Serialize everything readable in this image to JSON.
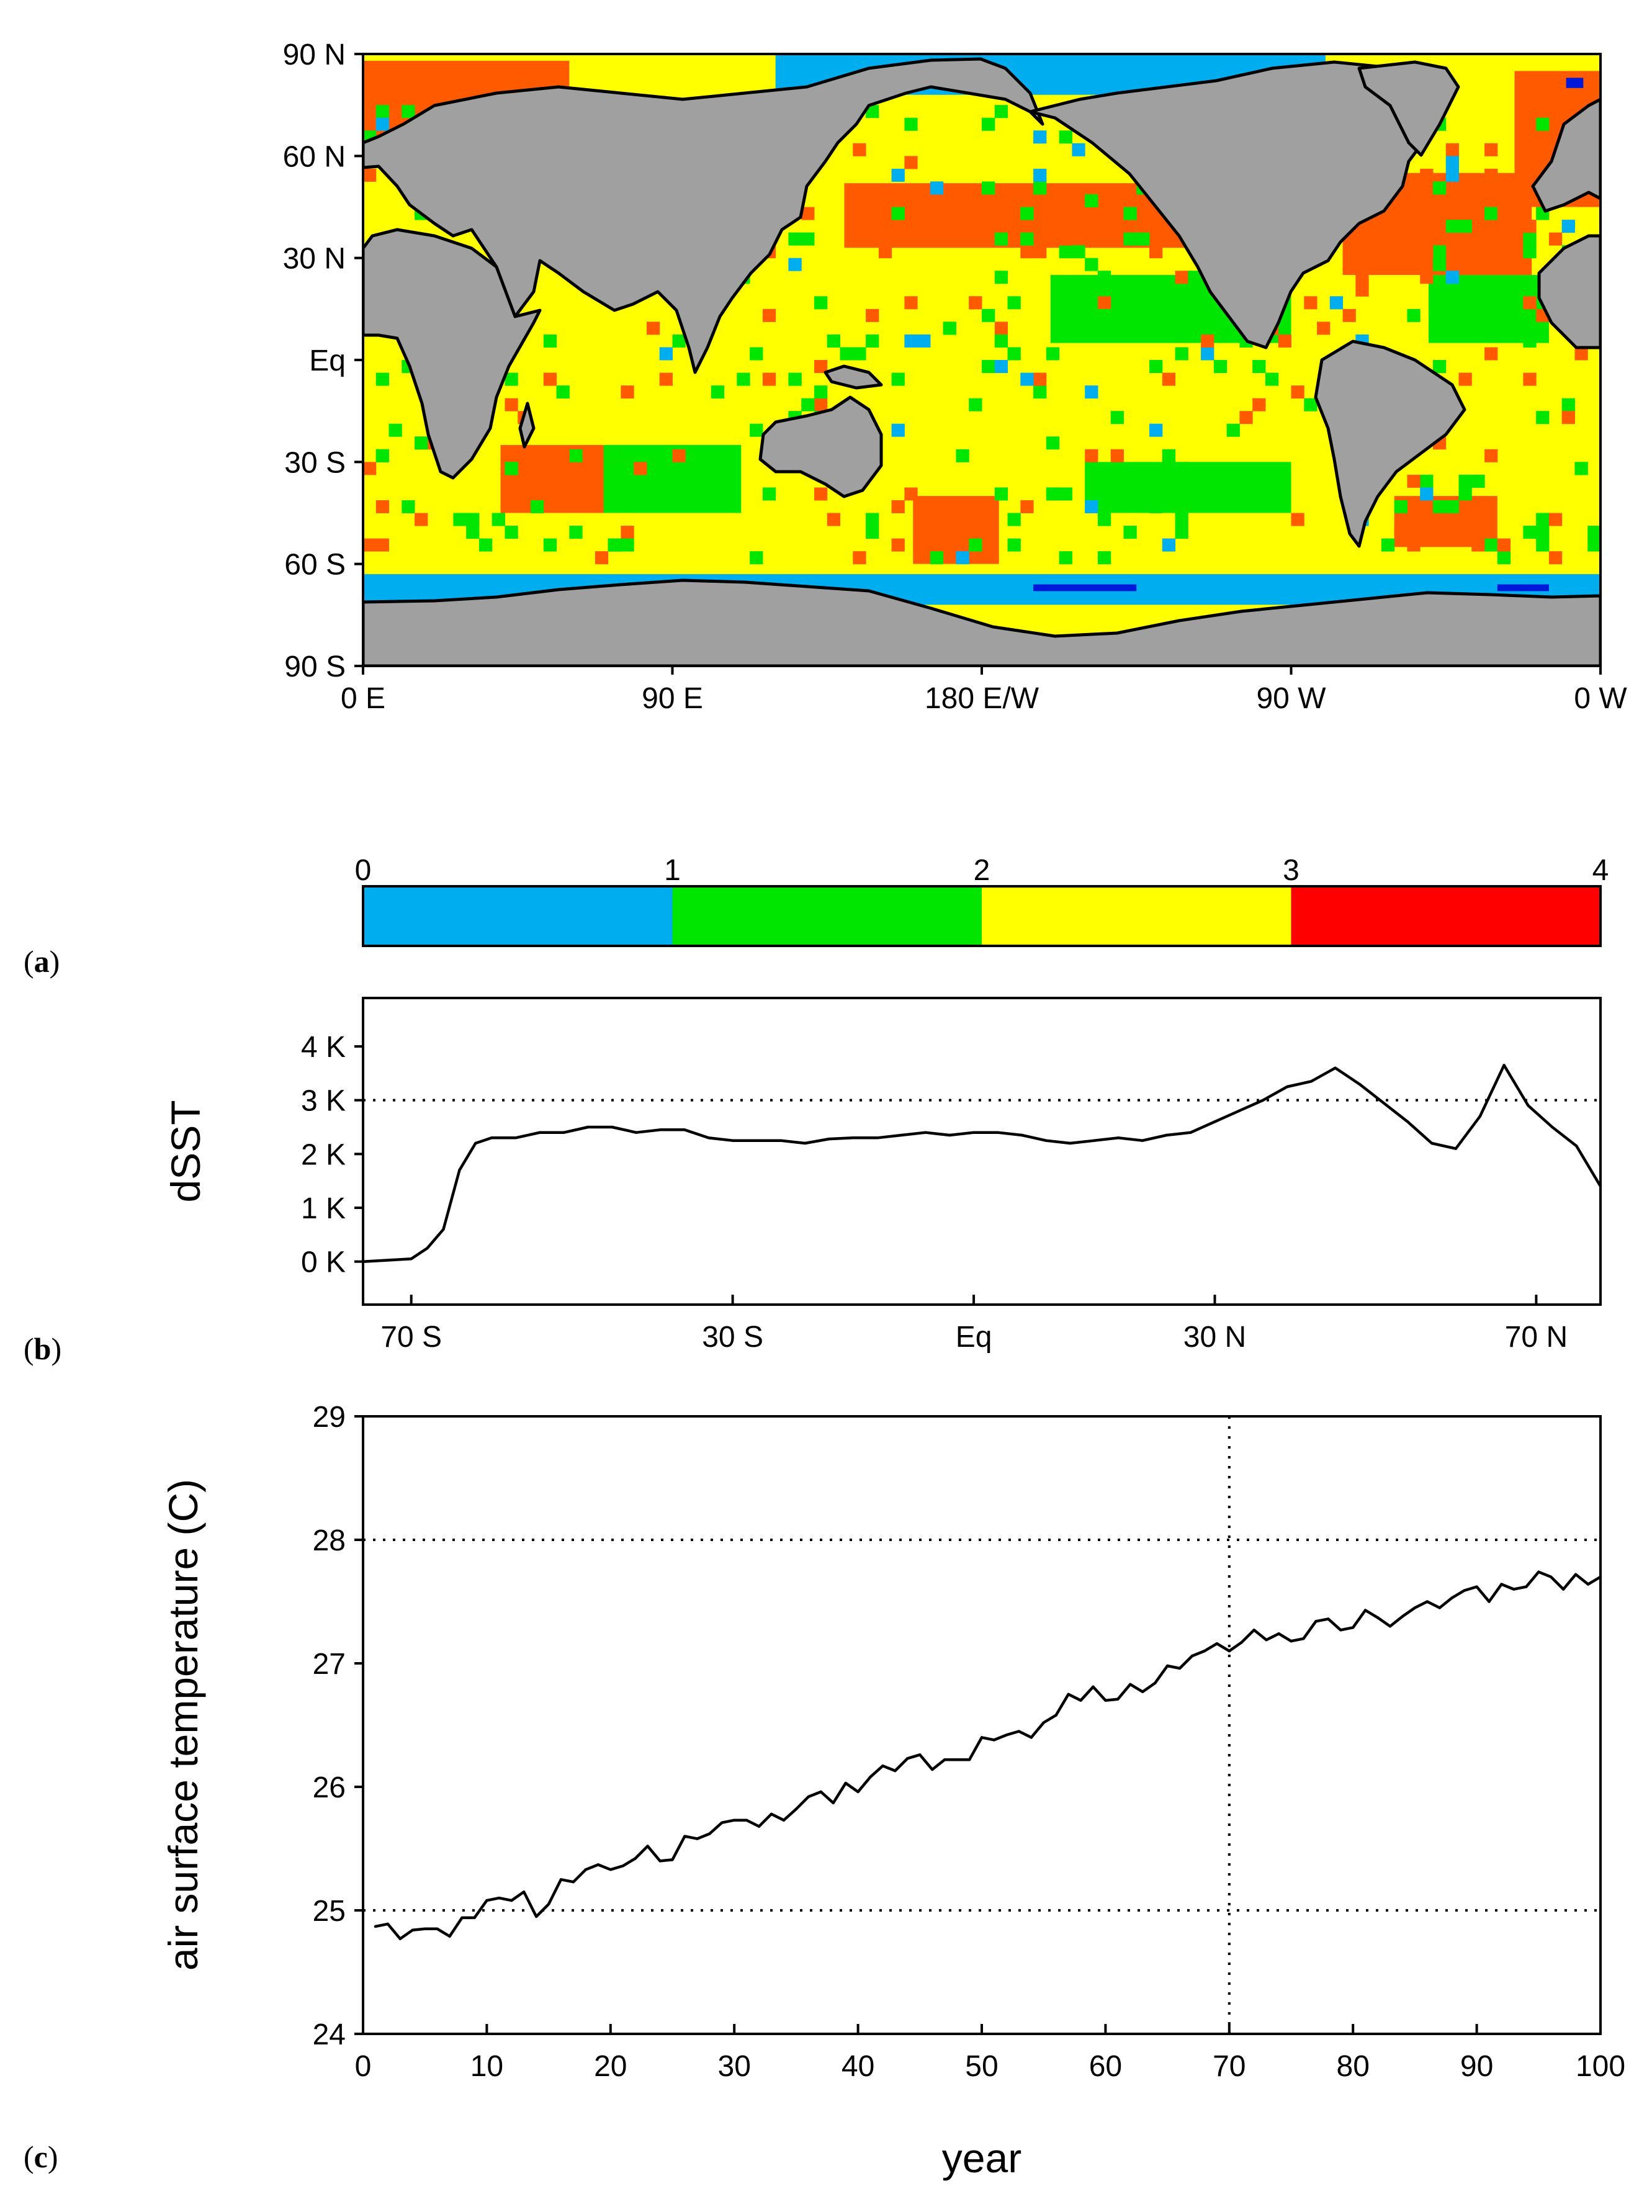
{
  "panels": {
    "a": {
      "label_prefix": "(",
      "letter": "a",
      "label_suffix": ")"
    },
    "b": {
      "label_prefix": "(",
      "letter": "b",
      "label_suffix": ")"
    },
    "c": {
      "label_prefix": "(",
      "letter": "c",
      "label_suffix": ")"
    }
  },
  "colors": {
    "land": "#a0a0a0",
    "bin_0_1": "#00aeef",
    "bin_1_2": "#00e600",
    "bin_2_3": "#ffff00",
    "bin_3_4": "#ff0000",
    "bin_3_4_map": "#ff5a00",
    "bin_deep": "#0018d8",
    "coast": "#000000"
  },
  "chart_data": [
    {
      "id": "map",
      "type": "heatmap",
      "title": "",
      "x_ticks": [
        "0 E",
        "90 E",
        "180 E/W",
        "90 W",
        "0 W"
      ],
      "x_tick_values": [
        0,
        90,
        180,
        270,
        360
      ],
      "y_ticks": [
        "90 N",
        "60 N",
        "30 N",
        "Eq",
        "30 S",
        "60 S",
        "90 S"
      ],
      "y_tick_values": [
        90,
        60,
        30,
        0,
        -30,
        -60,
        -90
      ],
      "xlim": [
        0,
        360
      ],
      "ylim": [
        -90,
        90
      ],
      "colorbar": {
        "ticks": [
          "0",
          "1",
          "2",
          "3",
          "4"
        ],
        "bins": [
          {
            "from": 0,
            "to": 1,
            "color": "#00aeef"
          },
          {
            "from": 1,
            "to": 2,
            "color": "#00e600"
          },
          {
            "from": 2,
            "to": 3,
            "color": "#ffff00"
          },
          {
            "from": 3,
            "to": 4,
            "color": "#ff0000"
          }
        ]
      },
      "regions": [
        {
          "name": "southern-ocean-band",
          "value": 0.5,
          "lon": [
            0,
            360
          ],
          "lat": [
            -72,
            -63
          ]
        },
        {
          "name": "arctic-north-pacific",
          "value": 0.5,
          "lon": [
            120,
            280
          ],
          "lat": [
            78,
            90
          ]
        },
        {
          "name": "arctic-barents",
          "value": 3.5,
          "lon": [
            0,
            60
          ],
          "lat": [
            66,
            88
          ]
        },
        {
          "name": "north-pacific-warm",
          "value": 3.5,
          "lon": [
            140,
            240
          ],
          "lat": [
            33,
            52
          ]
        },
        {
          "name": "north-atlantic-warm",
          "value": 3.5,
          "lon": [
            285,
            340
          ],
          "lat": [
            25,
            55
          ]
        },
        {
          "name": "greenland-sea-warm",
          "value": 3.5,
          "lon": [
            335,
            360
          ],
          "lat": [
            45,
            85
          ]
        },
        {
          "name": "tropical-pacific-low",
          "value": 1.5,
          "lon": [
            200,
            270
          ],
          "lat": [
            5,
            25
          ]
        },
        {
          "name": "tropical-atlantic-low",
          "value": 1.5,
          "lon": [
            310,
            345
          ],
          "lat": [
            5,
            25
          ]
        },
        {
          "name": "indian-ocean-low",
          "value": 1.5,
          "lon": [
            60,
            110
          ],
          "lat": [
            -45,
            -25
          ]
        },
        {
          "name": "south-pacific-low",
          "value": 1.5,
          "lon": [
            210,
            270
          ],
          "lat": [
            -45,
            -30
          ]
        },
        {
          "name": "south-indian-warm",
          "value": 3.5,
          "lon": [
            40,
            70
          ],
          "lat": [
            -45,
            -25
          ]
        },
        {
          "name": "tasman-warm",
          "value": 3.5,
          "lon": [
            160,
            185
          ],
          "lat": [
            -60,
            -40
          ]
        },
        {
          "name": "south-atlantic-warm",
          "value": 3.5,
          "lon": [
            300,
            330
          ],
          "lat": [
            -55,
            -40
          ]
        }
      ]
    },
    {
      "id": "zonal-dsst",
      "type": "line",
      "title": "",
      "ylabel": "dSST",
      "xlabel": "",
      "x_ticks": [
        "70 S",
        "30 S",
        "Eq",
        "30 N",
        "70 N"
      ],
      "x_tick_values": [
        -70,
        -30,
        0,
        30,
        70
      ],
      "y_ticks": [
        "0 K",
        "1 K",
        "2 K",
        "3 K",
        "4 K"
      ],
      "y_tick_values": [
        0,
        1,
        2,
        3,
        4
      ],
      "xlim": [
        -76,
        78
      ],
      "ylim": [
        -0.8,
        4.9
      ],
      "reference_lines": [
        {
          "axis": "y",
          "value": 3
        }
      ],
      "x": [
        -76,
        -70,
        -68,
        -66,
        -64,
        -62,
        -60,
        -57,
        -54,
        -51,
        -48,
        -45,
        -42,
        -39,
        -36,
        -33,
        -30,
        -27,
        -24,
        -21,
        -18,
        -15,
        -12,
        -9,
        -6,
        -3,
        0,
        3,
        6,
        9,
        12,
        15,
        18,
        21,
        24,
        27,
        30,
        33,
        36,
        39,
        42,
        45,
        48,
        51,
        54,
        57,
        60,
        63,
        66,
        69,
        72,
        75,
        78
      ],
      "values": [
        0,
        0.05,
        0.25,
        0.6,
        1.7,
        2.2,
        2.3,
        2.3,
        2.4,
        2.4,
        2.5,
        2.5,
        2.4,
        2.45,
        2.45,
        2.3,
        2.25,
        2.25,
        2.25,
        2.2,
        2.28,
        2.3,
        2.3,
        2.35,
        2.4,
        2.35,
        2.4,
        2.4,
        2.35,
        2.25,
        2.2,
        2.25,
        2.3,
        2.25,
        2.35,
        2.4,
        2.6,
        2.8,
        3.0,
        3.25,
        3.35,
        3.6,
        3.3,
        2.95,
        2.6,
        2.2,
        2.1,
        2.7,
        3.65,
        2.9,
        2.5,
        2.15,
        1.4
      ]
    },
    {
      "id": "air-temperature",
      "type": "line",
      "title": "",
      "ylabel": "air surface temperature (C)",
      "xlabel": "year",
      "x_ticks": [
        "0",
        "10",
        "20",
        "30",
        "40",
        "50",
        "60",
        "70",
        "80",
        "90",
        "100"
      ],
      "x_tick_values": [
        0,
        10,
        20,
        30,
        40,
        50,
        60,
        70,
        80,
        90,
        100
      ],
      "y_ticks": [
        "24",
        "25",
        "26",
        "27",
        "28",
        "29"
      ],
      "y_tick_values": [
        24,
        25,
        26,
        27,
        28,
        29
      ],
      "xlim": [
        0,
        100
      ],
      "ylim": [
        24,
        29
      ],
      "reference_lines": [
        {
          "axis": "y",
          "value": 25
        },
        {
          "axis": "y",
          "value": 28
        },
        {
          "axis": "x",
          "value": 70
        }
      ],
      "x": [
        1,
        2,
        3,
        4,
        5,
        6,
        7,
        8,
        9,
        10,
        11,
        12,
        13,
        14,
        15,
        16,
        17,
        18,
        19,
        20,
        21,
        22,
        23,
        24,
        25,
        26,
        27,
        28,
        29,
        30,
        31,
        32,
        33,
        34,
        35,
        36,
        37,
        38,
        39,
        40,
        41,
        42,
        43,
        44,
        45,
        46,
        47,
        48,
        49,
        50,
        51,
        52,
        53,
        54,
        55,
        56,
        57,
        58,
        59,
        60,
        61,
        62,
        63,
        64,
        65,
        66,
        67,
        68,
        69,
        70,
        71,
        72,
        73,
        74,
        75,
        76,
        77,
        78,
        79,
        80,
        81,
        82,
        83,
        84,
        85,
        86,
        87,
        88,
        89,
        90,
        91,
        92,
        93,
        94,
        95,
        96,
        97,
        98,
        99,
        100
      ],
      "values": [
        24.87,
        24.89,
        24.77,
        24.84,
        24.85,
        24.85,
        24.79,
        24.94,
        24.94,
        25.08,
        25.1,
        25.08,
        25.15,
        24.95,
        25.05,
        25.25,
        25.23,
        25.33,
        25.37,
        25.33,
        25.36,
        25.42,
        25.52,
        25.4,
        25.41,
        25.6,
        25.58,
        25.62,
        25.71,
        25.73,
        25.73,
        25.68,
        25.78,
        25.73,
        25.82,
        25.92,
        25.96,
        25.87,
        26.03,
        25.96,
        26.08,
        26.17,
        26.13,
        26.23,
        26.26,
        26.14,
        26.22,
        26.22,
        26.22,
        26.4,
        26.38,
        26.42,
        26.45,
        26.4,
        26.52,
        26.58,
        26.75,
        26.7,
        26.81,
        26.7,
        26.71,
        26.83,
        26.77,
        26.84,
        26.98,
        26.96,
        27.06,
        27.1,
        27.16,
        27.1,
        27.17,
        27.27,
        27.19,
        27.24,
        27.18,
        27.2,
        27.34,
        27.36,
        27.27,
        27.29,
        27.43,
        27.37,
        27.3,
        27.38,
        27.45,
        27.5,
        27.45,
        27.53,
        27.59,
        27.62,
        27.5,
        27.64,
        27.6,
        27.62,
        27.74,
        27.7,
        27.6,
        27.72,
        27.64,
        27.7
      ]
    }
  ]
}
